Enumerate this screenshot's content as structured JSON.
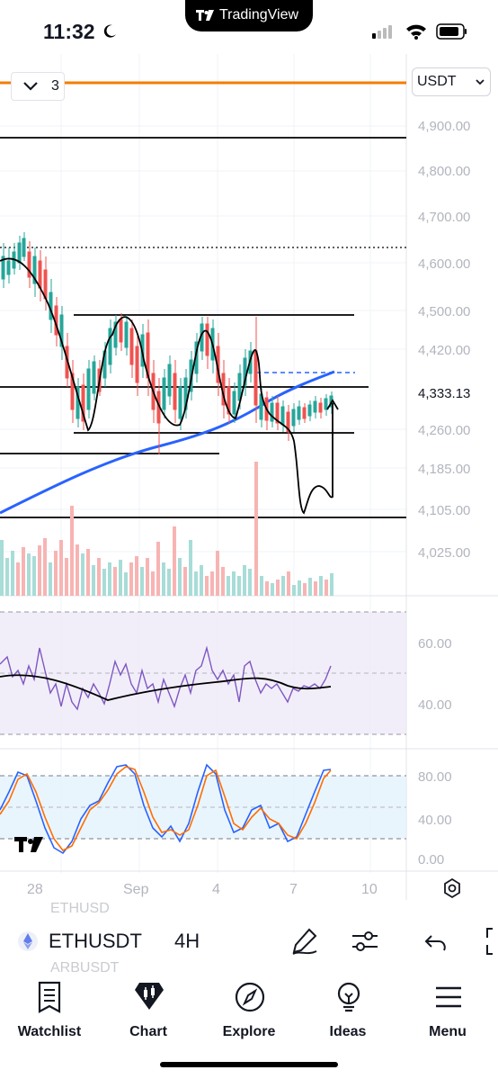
{
  "status_bar": {
    "time": "11:32",
    "island_label": "TradingView"
  },
  "header": {
    "currency": "USDT",
    "indicator_count": "3"
  },
  "price_axis": {
    "labels": [
      "4,900.00",
      "4,800.00",
      "4,700.00",
      "4,600.00",
      "4,500.00",
      "4,420.00",
      "4,260.00",
      "4,185.00",
      "4,105.00",
      "4,025.00"
    ],
    "current_price": "4,333.13"
  },
  "rsi_axis": {
    "labels": [
      "60.00",
      "40.00"
    ]
  },
  "stoch_axis": {
    "labels": [
      "80.00",
      "40.00",
      "0.00"
    ]
  },
  "time_axis": {
    "labels": [
      "28",
      "Sep",
      "4",
      "7",
      "10"
    ]
  },
  "symbol": {
    "name": "ETHUSDT",
    "interval": "4H",
    "ghost_above": "ETHUSD",
    "ghost_below": "ARBUSDT"
  },
  "nav": {
    "items": [
      {
        "label": "Watchlist",
        "icon": "watchlist-icon"
      },
      {
        "label": "Chart",
        "icon": "chart-icon"
      },
      {
        "label": "Explore",
        "icon": "compass-icon"
      },
      {
        "label": "Ideas",
        "icon": "lightbulb-icon"
      },
      {
        "label": "Menu",
        "icon": "menu-icon"
      }
    ]
  },
  "colors": {
    "up": "#26a69a",
    "down": "#ef5350",
    "ma": "#2962ff",
    "alert_line": "#f57c00",
    "rsi": "#7e57c2",
    "stoch_k": "#2962ff",
    "stoch_d": "#ff6d00"
  }
}
